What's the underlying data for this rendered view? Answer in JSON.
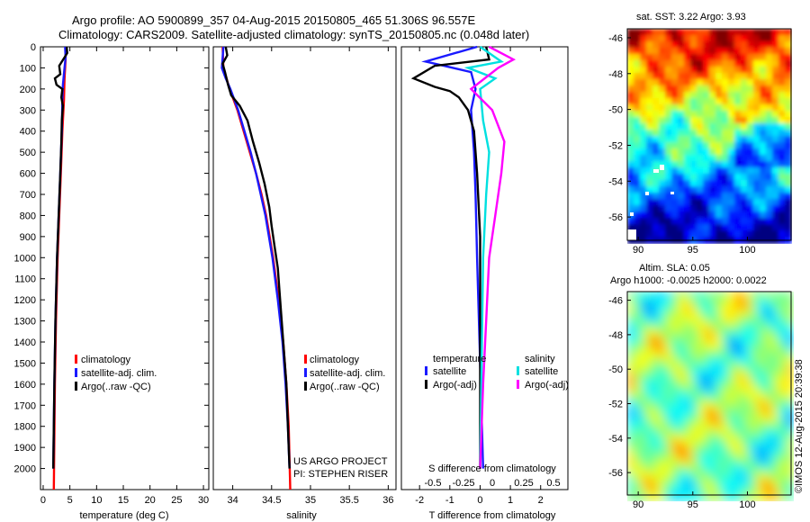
{
  "header": {
    "line1": "Argo profile: AO 5900899_357 04-Aug-2015 20150805_465 51.306S 96.557E",
    "line2": "Climatology: CARS2009. Satellite-adjusted climatology: synTS_20150805.nc (0.048d later)"
  },
  "colors": {
    "climatology": "#ff0000",
    "satellite": "#1a1aff",
    "argo": "#000000",
    "sat_s": "#00e0e0",
    "argo_s": "#ff00ff"
  },
  "chart_data": [
    {
      "type": "line",
      "id": "temperature",
      "xlabel": "temperature (deg C)",
      "ylabel": "",
      "xlim": [
        -0.5,
        31
      ],
      "ylim": [
        2100,
        0
      ],
      "xticks": [
        0,
        5,
        10,
        15,
        20,
        25,
        30
      ],
      "yticks": [
        0,
        100,
        200,
        300,
        400,
        500,
        600,
        700,
        800,
        900,
        1000,
        1100,
        1200,
        1300,
        1400,
        1500,
        1600,
        1700,
        1800,
        1900,
        2000
      ],
      "legend": [
        "climatology",
        "satellite-adj. clim.",
        "Argo(..raw -QC)"
      ],
      "series": [
        {
          "name": "climatology",
          "color": "#ff0000",
          "points": [
            [
              4.2,
              0
            ],
            [
              4.2,
              60
            ],
            [
              4.0,
              150
            ],
            [
              3.9,
              250
            ],
            [
              3.6,
              400
            ],
            [
              3.3,
              600
            ],
            [
              3.0,
              800
            ],
            [
              2.7,
              1000
            ],
            [
              2.4,
              1300
            ],
            [
              2.2,
              1600
            ],
            [
              2.0,
              2100
            ]
          ]
        },
        {
          "name": "satellite-adj. clim.",
          "color": "#1a1aff",
          "points": [
            [
              4.1,
              0
            ],
            [
              4.2,
              50
            ],
            [
              4.0,
              100
            ],
            [
              3.7,
              180
            ],
            [
              3.6,
              250
            ],
            [
              3.5,
              400
            ],
            [
              3.2,
              600
            ],
            [
              2.9,
              800
            ],
            [
              2.6,
              1000
            ],
            [
              2.3,
              1300
            ],
            [
              2.1,
              1600
            ],
            [
              1.9,
              2000
            ]
          ]
        },
        {
          "name": "Argo(..raw -QC)",
          "color": "#000000",
          "points": [
            [
              4.4,
              0
            ],
            [
              4.5,
              30
            ],
            [
              3.0,
              90
            ],
            [
              3.2,
              130
            ],
            [
              2.2,
              150
            ],
            [
              2.5,
              180
            ],
            [
              3.6,
              200
            ],
            [
              3.4,
              240
            ],
            [
              3.7,
              280
            ],
            [
              3.5,
              350
            ],
            [
              3.4,
              450
            ],
            [
              3.2,
              600
            ],
            [
              2.9,
              800
            ],
            [
              2.6,
              1000
            ],
            [
              2.3,
              1300
            ],
            [
              2.1,
              1600
            ],
            [
              1.9,
              2000
            ]
          ]
        }
      ]
    },
    {
      "type": "line",
      "id": "salinity",
      "xlabel": "salinity",
      "ylabel": "",
      "xlim": [
        33.75,
        36.1
      ],
      "ylim": [
        2100,
        0
      ],
      "xticks": [
        34,
        34.5,
        35,
        35.5,
        36
      ],
      "legend": [
        "climatology",
        "satellite-adj. clim.",
        "Argo(..raw -QC)"
      ],
      "annotation": [
        "US ARGO PROJECT",
        "PI: STEPHEN RISER"
      ],
      "series": [
        {
          "name": "climatology",
          "color": "#ff0000",
          "points": [
            [
              33.87,
              0
            ],
            [
              33.88,
              100
            ],
            [
              33.96,
              200
            ],
            [
              34.06,
              300
            ],
            [
              34.14,
              400
            ],
            [
              34.22,
              500
            ],
            [
              34.3,
              600
            ],
            [
              34.37,
              700
            ],
            [
              34.43,
              800
            ],
            [
              34.52,
              1000
            ],
            [
              34.59,
              1200
            ],
            [
              34.65,
              1400
            ],
            [
              34.69,
              1600
            ],
            [
              34.72,
              1800
            ],
            [
              34.74,
              2100
            ]
          ]
        },
        {
          "name": "satellite-adj. clim.",
          "color": "#1a1aff",
          "points": [
            [
              33.88,
              0
            ],
            [
              33.87,
              50
            ],
            [
              33.86,
              100
            ],
            [
              33.91,
              150
            ],
            [
              33.97,
              200
            ],
            [
              34.07,
              300
            ],
            [
              34.15,
              400
            ],
            [
              34.23,
              500
            ],
            [
              34.3,
              600
            ],
            [
              34.36,
              700
            ],
            [
              34.42,
              800
            ],
            [
              34.51,
              1000
            ],
            [
              34.58,
              1200
            ],
            [
              34.64,
              1400
            ],
            [
              34.68,
              1600
            ],
            [
              34.71,
              1800
            ],
            [
              34.73,
              2000
            ]
          ]
        },
        {
          "name": "Argo(..raw -QC)",
          "color": "#000000",
          "points": [
            [
              33.91,
              0
            ],
            [
              33.93,
              40
            ],
            [
              33.87,
              80
            ],
            [
              33.9,
              120
            ],
            [
              33.94,
              180
            ],
            [
              33.98,
              230
            ],
            [
              34.09,
              280
            ],
            [
              34.19,
              350
            ],
            [
              34.26,
              450
            ],
            [
              34.34,
              550
            ],
            [
              34.41,
              650
            ],
            [
              34.47,
              760
            ],
            [
              34.5,
              850
            ],
            [
              34.54,
              950
            ],
            [
              34.58,
              1050
            ],
            [
              34.6,
              1150
            ],
            [
              34.63,
              1300
            ],
            [
              34.66,
              1450
            ],
            [
              34.69,
              1600
            ],
            [
              34.71,
              1800
            ],
            [
              34.73,
              2000
            ]
          ]
        }
      ]
    },
    {
      "type": "line",
      "id": "difference",
      "xlabel": "T difference from climatology",
      "ylabel": "",
      "xlim": [
        -2.6,
        2.9
      ],
      "ylim": [
        2100,
        0
      ],
      "xticks": [
        -2,
        -1,
        0,
        1,
        2
      ],
      "top_label": "S difference from climatology",
      "top_ticks": [
        "-0.5",
        "-0.25",
        "0",
        "0.25",
        "0.5"
      ],
      "legend_titles": [
        "temperature",
        "salinity"
      ],
      "legend_left": [
        "satellite",
        "Argo(-adj)"
      ],
      "legend_right": [
        "satellite",
        "Argo(-adj)"
      ],
      "series": [
        {
          "name": "T satellite",
          "color": "#1a1aff",
          "points": [
            [
              -0.1,
              0
            ],
            [
              -1.8,
              70
            ],
            [
              -1.2,
              90
            ],
            [
              -0.3,
              120
            ],
            [
              -0.15,
              200
            ],
            [
              -0.3,
              300
            ],
            [
              -0.2,
              500
            ],
            [
              -0.15,
              700
            ],
            [
              -0.1,
              1000
            ],
            [
              0,
              1500
            ],
            [
              0.1,
              2000
            ]
          ]
        },
        {
          "name": "T Argo(-adj)",
          "color": "#000000",
          "points": [
            [
              0.2,
              0
            ],
            [
              0.3,
              60
            ],
            [
              -1.5,
              90
            ],
            [
              -2.2,
              150
            ],
            [
              -1.5,
              190
            ],
            [
              -1.0,
              210
            ],
            [
              -0.7,
              240
            ],
            [
              -0.4,
              300
            ],
            [
              -0.2,
              400
            ],
            [
              -0.1,
              600
            ],
            [
              0,
              900
            ],
            [
              0,
              1300
            ],
            [
              0,
              2000
            ]
          ]
        },
        {
          "name": "S satellite",
          "color": "#00e0e0",
          "points": [
            [
              0,
              0
            ],
            [
              0.7,
              70
            ],
            [
              -0.4,
              100
            ],
            [
              0.5,
              150
            ],
            [
              0,
              200
            ],
            [
              0.1,
              350
            ],
            [
              0.3,
              500
            ],
            [
              0.2,
              700
            ],
            [
              0.1,
              1000
            ],
            [
              0.05,
              1500
            ],
            [
              0,
              2000
            ]
          ]
        },
        {
          "name": "S Argo(-adj)",
          "color": "#ff00ff",
          "points": [
            [
              0.3,
              0
            ],
            [
              1.1,
              60
            ],
            [
              0.6,
              100
            ],
            [
              -0.3,
              200
            ],
            [
              0.4,
              300
            ],
            [
              0.8,
              450
            ],
            [
              0.7,
              600
            ],
            [
              0.5,
              800
            ],
            [
              0.3,
              1000
            ],
            [
              0.2,
              1300
            ],
            [
              0.1,
              1600
            ],
            [
              0,
              2000
            ]
          ]
        }
      ]
    },
    {
      "type": "heatmap",
      "id": "sst_map",
      "title": "sat. SST: 3.22 Argo: 3.93",
      "xticks": [
        90,
        95,
        100
      ],
      "yticks": [
        -46,
        -48,
        -50,
        -52,
        -54,
        -56
      ],
      "xlim": [
        89,
        104
      ],
      "ylim": [
        -57.3,
        -45.5
      ]
    },
    {
      "type": "heatmap",
      "id": "sla_map",
      "title_lines": [
        "Altim. SLA: 0.05",
        "Argo h1000: -0.0025 h2000: 0.0022"
      ],
      "xticks": [
        90,
        95,
        100
      ],
      "yticks": [
        -46,
        -48,
        -50,
        -52,
        -54,
        -56
      ],
      "xlim": [
        89,
        104
      ],
      "ylim": [
        -57.3,
        -45.5
      ]
    }
  ],
  "footer": {
    "timestamp": "©IMOS 12-Aug-2015 20:39:38"
  }
}
